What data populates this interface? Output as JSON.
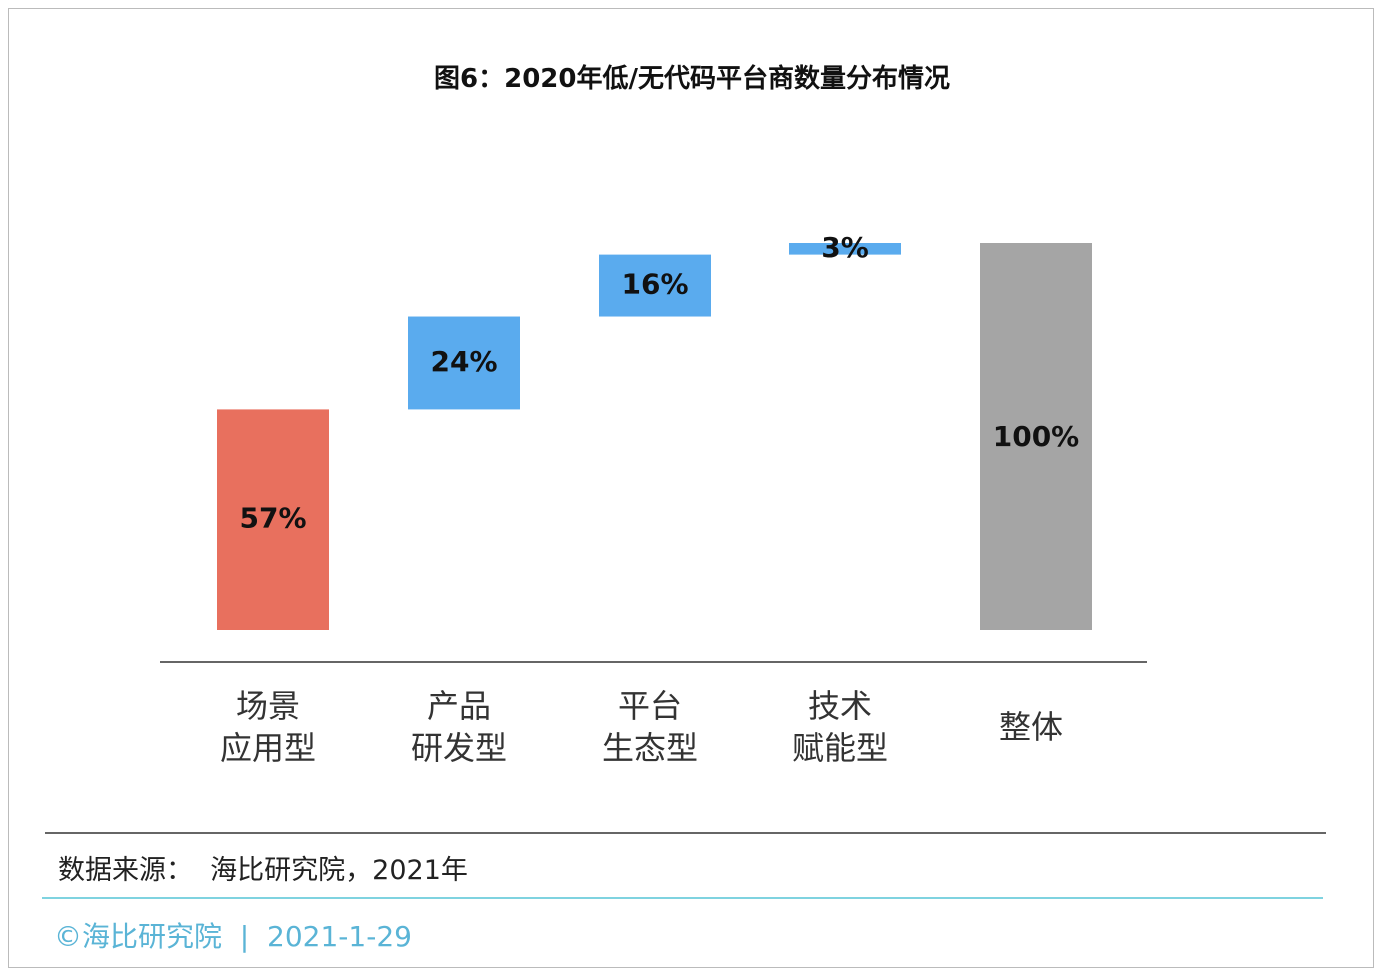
{
  "chart_data": {
    "type": "waterfall",
    "title": "图6：2020年低/无代码平台商数量分布情况",
    "categories": [
      "场景\n应用型",
      "产品\n研发型",
      "平台\n生态型",
      "技术\n赋能型",
      "整体"
    ],
    "values": [
      57,
      24,
      16,
      3,
      100
    ],
    "value_labels": [
      "57%",
      "24%",
      "16%",
      "3%",
      "100%"
    ],
    "is_total": [
      false,
      false,
      false,
      false,
      true
    ],
    "colors": [
      "#e8705e",
      "#5aabee",
      "#5aabee",
      "#5aabee",
      "#a5a5a5"
    ]
  },
  "source": "数据来源：  海比研究院，2021年",
  "footer": "©海比研究院  |  2021-1-29"
}
